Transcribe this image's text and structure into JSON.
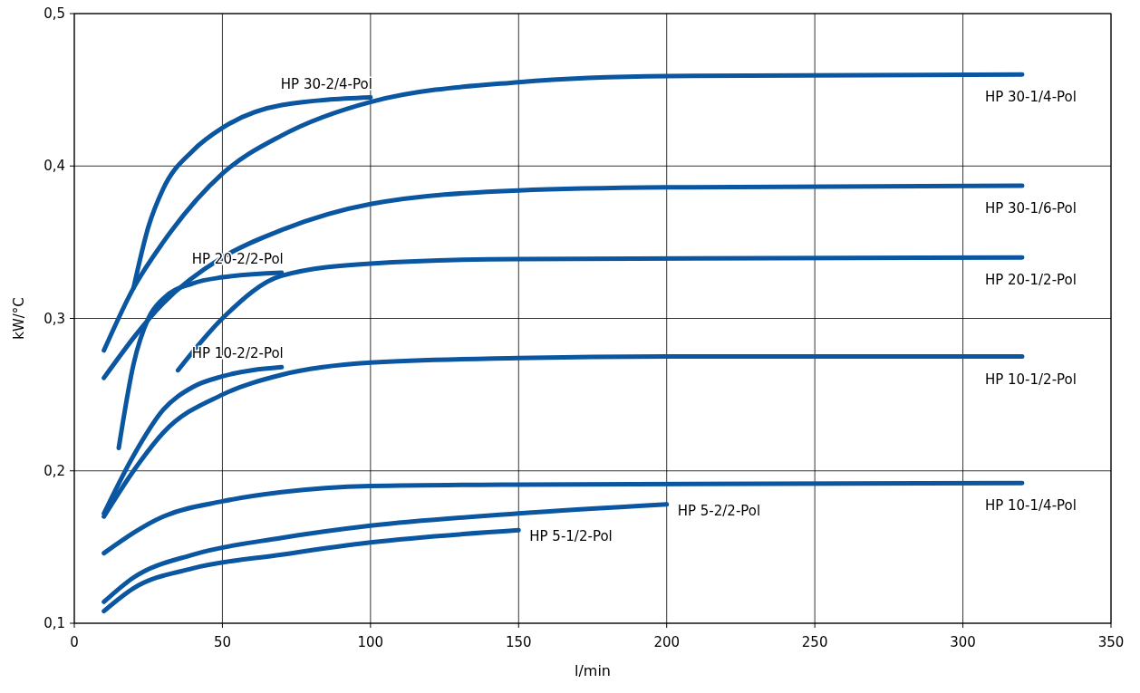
{
  "chart_data": {
    "type": "line",
    "xlabel": "l/min",
    "ylabel": "kW/°C",
    "xlim": [
      0,
      350
    ],
    "xticks": [
      0,
      50,
      100,
      150,
      200,
      250,
      300,
      350
    ],
    "ylim": [
      0.1,
      0.5
    ],
    "yticks": [
      {
        "value": 0.1,
        "label": "0,1"
      },
      {
        "value": 0.2,
        "label": "0,2"
      },
      {
        "value": 0.3,
        "label": "0,3"
      },
      {
        "value": 0.4,
        "label": "0,4"
      },
      {
        "value": 0.5,
        "label": "0,5"
      }
    ],
    "grid": true,
    "marker": "none",
    "line_style": "solid",
    "series": [
      {
        "name": "HP 30-2/4-Pol",
        "color": "#0a56a0",
        "x": [
          20,
          25,
          30,
          40,
          50,
          70,
          100
        ],
        "values": [
          0.32,
          0.36,
          0.385,
          0.41,
          0.425,
          0.44,
          0.445
        ]
      },
      {
        "name": "HP 30-1/4-Pol",
        "color": "#0a56a0",
        "x": [
          10,
          20,
          30,
          50,
          70,
          100,
          150,
          200,
          320
        ],
        "values": [
          0.279,
          0.32,
          0.35,
          0.395,
          0.42,
          0.442,
          0.455,
          0.459,
          0.46
        ]
      },
      {
        "name": "HP 30-1/6-Pol",
        "color": "#0a56a0",
        "x": [
          10,
          30,
          50,
          70,
          100,
          150,
          200,
          320
        ],
        "values": [
          0.261,
          0.31,
          0.34,
          0.358,
          0.375,
          0.384,
          0.386,
          0.387
        ]
      },
      {
        "name": "HP 20-2/2-Pol",
        "color": "#0a56a0",
        "x": [
          15,
          20,
          25,
          30,
          40,
          50,
          70
        ],
        "values": [
          0.215,
          0.27,
          0.3,
          0.313,
          0.323,
          0.327,
          0.33
        ]
      },
      {
        "name": "HP 20-1/2-Pol",
        "color": "#0a56a0",
        "x": [
          35,
          50,
          70,
          100,
          150,
          320
        ],
        "values": [
          0.266,
          0.3,
          0.328,
          0.336,
          0.339,
          0.34
        ]
      },
      {
        "name": "HP 10-2/2-Pol",
        "color": "#0a56a0",
        "x": [
          10,
          20,
          30,
          40,
          50,
          70
        ],
        "values": [
          0.172,
          0.21,
          0.24,
          0.255,
          0.262,
          0.268
        ]
      },
      {
        "name": "HP 10-1/2-Pol",
        "color": "#0a56a0",
        "x": [
          10,
          20,
          30,
          50,
          70,
          100,
          150,
          200,
          320
        ],
        "values": [
          0.17,
          0.2,
          0.225,
          0.25,
          0.263,
          0.271,
          0.274,
          0.275,
          0.275
        ]
      },
      {
        "name": "HP 10-1/4-Pol",
        "color": "#0a56a0",
        "x": [
          10,
          30,
          50,
          70,
          100,
          150,
          320
        ],
        "values": [
          0.146,
          0.17,
          0.18,
          0.186,
          0.19,
          0.191,
          0.192
        ]
      },
      {
        "name": "HP 5-2/2-Pol",
        "color": "#0a56a0",
        "x": [
          10,
          20,
          40,
          70,
          100,
          150,
          200
        ],
        "values": [
          0.114,
          0.13,
          0.145,
          0.156,
          0.164,
          0.172,
          0.178
        ]
      },
      {
        "name": "HP 5-1/2-Pol",
        "color": "#0a56a0",
        "x": [
          10,
          20,
          40,
          70,
          100,
          150
        ],
        "values": [
          0.108,
          0.123,
          0.136,
          0.145,
          0.153,
          0.161
        ]
      }
    ]
  }
}
